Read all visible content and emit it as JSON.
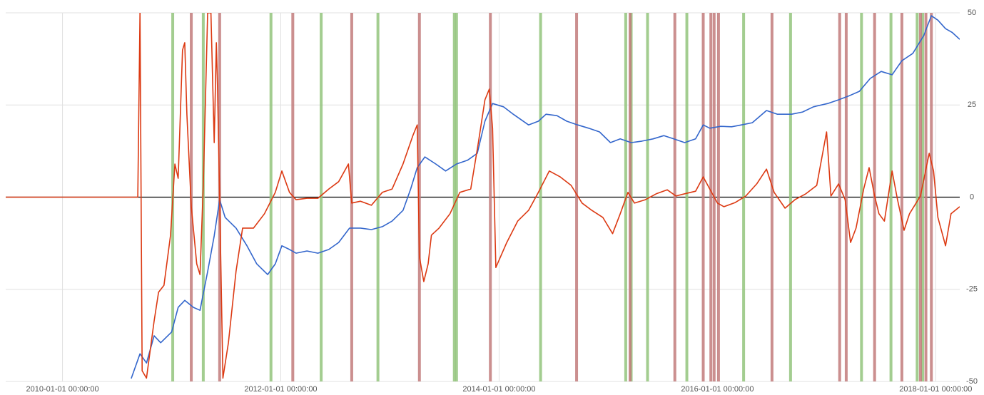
{
  "chart_data": {
    "type": "line",
    "xlim": [
      2009.48,
      2018.22
    ],
    "xticks": [
      {
        "value": 2010,
        "label": "2010-01-01 00:00:00"
      },
      {
        "value": 2012,
        "label": "2012-01-01 00:00:00"
      },
      {
        "value": 2014,
        "label": "2014-01-01 00:00:00"
      },
      {
        "value": 2016,
        "label": "2016-01-01 00:00:00"
      },
      {
        "value": 2018,
        "label": "2018-01-01 00:00:00"
      }
    ],
    "ylim": [
      -50,
      50
    ],
    "yticks": [
      50,
      25,
      0,
      -25,
      -50
    ],
    "grid": true,
    "markers": [
      {
        "color": "#93c47d",
        "x": [
          2011.01,
          2011.29,
          2011.91,
          2012.37,
          2012.89,
          2013.59,
          2013.61,
          2014.38,
          2015.16,
          2015.21,
          2015.36,
          2015.72,
          2016.24,
          2016.67,
          2017.32,
          2017.59,
          2017.83,
          2017.88
        ]
      },
      {
        "color": "#c27b7b",
        "x": [
          2011.18,
          2011.44,
          2012.11,
          2012.65,
          2013.27,
          2013.92,
          2014.71,
          2015.2,
          2015.61,
          2015.87,
          2015.94,
          2015.97,
          2016.01,
          2016.5,
          2017.12,
          2017.18,
          2017.44,
          2017.69,
          2017.86,
          2017.91,
          2017.96
        ]
      }
    ],
    "series": [
      {
        "color": "#3366cc",
        "x": [
          2010.63,
          2010.71,
          2010.77,
          2010.84,
          2010.9,
          2011.0,
          2011.06,
          2011.12,
          2011.2,
          2011.26,
          2011.33,
          2011.39,
          2011.44,
          2011.49,
          2011.59,
          2011.69,
          2011.78,
          2011.88,
          2011.95,
          2012.01,
          2012.08,
          2012.14,
          2012.24,
          2012.34,
          2012.44,
          2012.53,
          2012.63,
          2012.73,
          2012.83,
          2012.93,
          2013.02,
          2013.12,
          2013.19,
          2013.25,
          2013.32,
          2013.42,
          2013.51,
          2013.61,
          2013.71,
          2013.8,
          2013.87,
          2013.94,
          2014.04,
          2014.13,
          2014.27,
          2014.36,
          2014.43,
          2014.53,
          2014.62,
          2014.72,
          2014.82,
          2014.92,
          2015.02,
          2015.11,
          2015.21,
          2015.31,
          2015.41,
          2015.51,
          2015.6,
          2015.7,
          2015.8,
          2015.87,
          2015.93,
          2016.03,
          2016.13,
          2016.22,
          2016.32,
          2016.45,
          2016.55,
          2016.68,
          2016.78,
          2016.88,
          2017.01,
          2017.11,
          2017.2,
          2017.3,
          2017.4,
          2017.5,
          2017.6,
          2017.69,
          2017.79,
          2017.89,
          2017.96,
          2018.02,
          2018.09,
          2018.15,
          2018.22
        ],
        "values": [
          -49.2,
          -42.5,
          -45.0,
          -37.6,
          -39.5,
          -36.6,
          -29.9,
          -28.0,
          -29.9,
          -30.7,
          -20.2,
          -10.5,
          -0.7,
          -5.5,
          -8.4,
          -13.2,
          -18.1,
          -21.0,
          -18.1,
          -13.2,
          -14.2,
          -15.2,
          -14.6,
          -15.2,
          -14.2,
          -12.3,
          -8.4,
          -8.4,
          -8.8,
          -8.0,
          -6.5,
          -3.6,
          2.2,
          8.0,
          10.9,
          9.0,
          7.1,
          9.0,
          10.0,
          11.9,
          20.6,
          25.4,
          24.5,
          22.5,
          19.6,
          20.6,
          22.5,
          22.1,
          20.6,
          19.6,
          18.7,
          17.7,
          14.8,
          15.8,
          14.8,
          15.2,
          15.8,
          16.7,
          15.8,
          14.8,
          15.8,
          19.6,
          18.7,
          19.2,
          19.1,
          19.6,
          20.2,
          23.5,
          22.5,
          22.5,
          23.1,
          24.5,
          25.4,
          26.4,
          27.4,
          28.7,
          32.2,
          34.1,
          33.2,
          37.0,
          39.0,
          43.8,
          49.2,
          48.0,
          45.7,
          44.7,
          42.8
        ]
      },
      {
        "color": "#dc3912",
        "x": [
          2009.48,
          2010.62,
          2010.69,
          2010.71,
          2010.73,
          2010.77,
          2010.84,
          2010.88,
          2010.93,
          2010.99,
          2011.03,
          2011.06,
          2011.1,
          2011.12,
          2011.14,
          2011.18,
          2011.23,
          2011.26,
          2011.29,
          2011.33,
          2011.36,
          2011.39,
          2011.41,
          2011.42,
          2011.44,
          2011.47,
          2011.52,
          2011.59,
          2011.65,
          2011.75,
          2011.85,
          2011.95,
          2012.01,
          2012.08,
          2012.14,
          2012.24,
          2012.34,
          2012.44,
          2012.53,
          2012.62,
          2012.65,
          2012.73,
          2012.83,
          2012.93,
          2013.02,
          2013.12,
          2013.21,
          2013.25,
          2013.27,
          2013.31,
          2013.35,
          2013.38,
          2013.45,
          2013.55,
          2013.64,
          2013.74,
          2013.81,
          2013.87,
          2013.91,
          2013.94,
          2013.97,
          2014.07,
          2014.17,
          2014.27,
          2014.36,
          2014.46,
          2014.56,
          2014.66,
          2014.76,
          2014.85,
          2014.95,
          2015.04,
          2015.11,
          2015.18,
          2015.24,
          2015.34,
          2015.44,
          2015.54,
          2015.62,
          2015.7,
          2015.8,
          2015.87,
          2015.93,
          2016.0,
          2016.06,
          2016.16,
          2016.26,
          2016.36,
          2016.45,
          2016.52,
          2016.62,
          2016.71,
          2016.81,
          2016.91,
          2017.0,
          2017.04,
          2017.11,
          2017.17,
          2017.22,
          2017.27,
          2017.34,
          2017.39,
          2017.44,
          2017.48,
          2017.53,
          2017.6,
          2017.65,
          2017.71,
          2017.76,
          2017.86,
          2017.94,
          2017.98,
          2018.02,
          2018.09,
          2018.14,
          2018.22
        ],
        "values": [
          0,
          0,
          0,
          50.0,
          -47.1,
          -49.1,
          -33.6,
          -25.8,
          -23.9,
          -10.3,
          9.0,
          5.1,
          39.9,
          41.9,
          22.5,
          -2.6,
          -18.1,
          -21.0,
          3.2,
          50.0,
          50.0,
          14.8,
          41.9,
          30.3,
          0,
          -49.1,
          -39.5,
          -20.1,
          -8.4,
          -8.4,
          -4.5,
          1.3,
          7.1,
          1.3,
          -0.7,
          -0.3,
          -0.3,
          2.2,
          4.2,
          9.0,
          -1.6,
          -1.1,
          -2.2,
          1.3,
          2.2,
          9.0,
          16.7,
          19.6,
          -16.2,
          -22.9,
          -18.1,
          -10.3,
          -8.4,
          -4.5,
          1.3,
          2.2,
          14.8,
          26.4,
          29.3,
          18.7,
          -19.1,
          -12.3,
          -6.5,
          -3.6,
          1.3,
          7.1,
          5.5,
          3.2,
          -1.6,
          -3.6,
          -5.5,
          -9.9,
          -4.5,
          1.3,
          -1.6,
          -0.7,
          0.9,
          2.0,
          0.3,
          0.9,
          1.6,
          5.5,
          2.2,
          -1.6,
          -2.6,
          -1.5,
          0.3,
          3.6,
          7.6,
          1.3,
          -3.0,
          -0.7,
          0.9,
          3.2,
          17.7,
          0.3,
          3.6,
          -0.7,
          -12.3,
          -8.4,
          2.2,
          8.0,
          0.3,
          -4.5,
          -6.5,
          7.1,
          -0.7,
          -9.0,
          -4.5,
          0.3,
          11.9,
          7.1,
          -5.5,
          -13.2,
          -4.5,
          -2.6
        ]
      }
    ]
  }
}
